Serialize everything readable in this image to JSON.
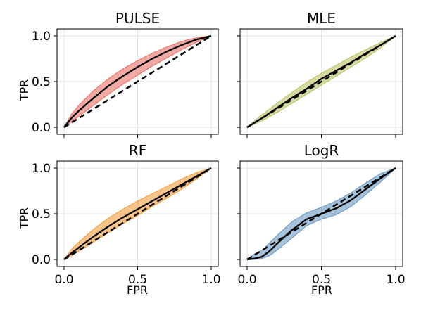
{
  "figure": {
    "ylabel": "TPR",
    "xlabel": "FPR"
  },
  "chart_data": [
    {
      "type": "line",
      "title": "PULSE",
      "xlabel": "",
      "ylabel": "TPR",
      "xlim": [
        0,
        1
      ],
      "ylim": [
        0,
        1
      ],
      "xticks": [
        "0.0",
        "0.5",
        "1.0"
      ],
      "yticks": [
        "0.0",
        "0.5",
        "1.0"
      ],
      "show_xtick_labels": false,
      "show_ytick_labels": true,
      "grid": true,
      "band_color": "#e8655a",
      "mean_color": "#000000",
      "series": [
        {
          "role": "mean-roc",
          "x": [
            0,
            0.05,
            0.1,
            0.2,
            0.3,
            0.4,
            0.5,
            0.6,
            0.7,
            0.8,
            0.9,
            1
          ],
          "y": [
            0,
            0.1,
            0.18,
            0.32,
            0.45,
            0.56,
            0.66,
            0.75,
            0.83,
            0.9,
            0.96,
            1
          ]
        },
        {
          "role": "band-upper",
          "x": [
            0,
            0.05,
            0.1,
            0.2,
            0.3,
            0.4,
            0.5,
            0.6,
            0.7,
            0.8,
            0.9,
            1
          ],
          "y": [
            0,
            0.14,
            0.24,
            0.4,
            0.53,
            0.64,
            0.73,
            0.81,
            0.88,
            0.94,
            0.98,
            1
          ]
        },
        {
          "role": "band-lower",
          "x": [
            0,
            0.05,
            0.1,
            0.2,
            0.3,
            0.4,
            0.5,
            0.6,
            0.7,
            0.8,
            0.9,
            1
          ],
          "y": [
            0,
            0.06,
            0.12,
            0.24,
            0.36,
            0.47,
            0.57,
            0.67,
            0.76,
            0.85,
            0.93,
            1
          ]
        },
        {
          "role": "chance",
          "x": [
            0,
            1
          ],
          "y": [
            0,
            1
          ]
        }
      ]
    },
    {
      "type": "line",
      "title": "MLE",
      "xlabel": "",
      "ylabel": "",
      "xlim": [
        0,
        1
      ],
      "ylim": [
        0,
        1
      ],
      "xticks": [
        "0.0",
        "0.5",
        "1.0"
      ],
      "yticks": [
        "0.0",
        "0.5",
        "1.0"
      ],
      "show_xtick_labels": false,
      "show_ytick_labels": false,
      "grid": true,
      "band_color": "#b5bd5a",
      "mean_color": "#000000",
      "series": [
        {
          "role": "mean-roc",
          "x": [
            0,
            0.1,
            0.2,
            0.3,
            0.4,
            0.5,
            0.6,
            0.7,
            0.8,
            0.9,
            1
          ],
          "y": [
            0,
            0.1,
            0.21,
            0.32,
            0.42,
            0.53,
            0.62,
            0.71,
            0.81,
            0.9,
            1
          ]
        },
        {
          "role": "band-upper",
          "x": [
            0,
            0.1,
            0.2,
            0.3,
            0.4,
            0.5,
            0.6,
            0.7,
            0.8,
            0.9,
            1
          ],
          "y": [
            0,
            0.14,
            0.26,
            0.38,
            0.49,
            0.59,
            0.68,
            0.77,
            0.85,
            0.93,
            1
          ]
        },
        {
          "role": "band-lower",
          "x": [
            0,
            0.1,
            0.2,
            0.3,
            0.4,
            0.5,
            0.6,
            0.7,
            0.8,
            0.9,
            1
          ],
          "y": [
            0,
            0.07,
            0.16,
            0.26,
            0.36,
            0.46,
            0.56,
            0.66,
            0.76,
            0.87,
            1
          ]
        },
        {
          "role": "chance",
          "x": [
            0,
            1
          ],
          "y": [
            0,
            1
          ]
        }
      ]
    },
    {
      "type": "line",
      "title": "RF",
      "xlabel": "FPR",
      "ylabel": "TPR",
      "xlim": [
        0,
        1
      ],
      "ylim": [
        0,
        1
      ],
      "xticks": [
        "0.0",
        "0.5",
        "1.0"
      ],
      "yticks": [
        "0.0",
        "0.5",
        "1.0"
      ],
      "show_xtick_labels": true,
      "show_ytick_labels": true,
      "grid": true,
      "band_color": "#f0952e",
      "mean_color": "#000000",
      "series": [
        {
          "role": "mean-roc",
          "x": [
            0,
            0.05,
            0.1,
            0.2,
            0.3,
            0.4,
            0.5,
            0.6,
            0.7,
            0.8,
            0.9,
            1
          ],
          "y": [
            0,
            0.07,
            0.13,
            0.25,
            0.36,
            0.46,
            0.55,
            0.64,
            0.73,
            0.82,
            0.91,
            1
          ]
        },
        {
          "role": "band-upper",
          "x": [
            0,
            0.05,
            0.1,
            0.2,
            0.3,
            0.4,
            0.5,
            0.6,
            0.7,
            0.8,
            0.9,
            1
          ],
          "y": [
            0,
            0.11,
            0.19,
            0.33,
            0.45,
            0.55,
            0.64,
            0.72,
            0.8,
            0.88,
            0.95,
            1
          ]
        },
        {
          "role": "band-lower",
          "x": [
            0,
            0.05,
            0.1,
            0.2,
            0.3,
            0.4,
            0.5,
            0.6,
            0.7,
            0.8,
            0.9,
            1
          ],
          "y": [
            0,
            0.04,
            0.09,
            0.19,
            0.29,
            0.39,
            0.48,
            0.58,
            0.67,
            0.77,
            0.88,
            1
          ]
        },
        {
          "role": "chance",
          "x": [
            0,
            1
          ],
          "y": [
            0,
            1
          ]
        }
      ]
    },
    {
      "type": "line",
      "title": "LogR",
      "xlabel": "FPR",
      "ylabel": "",
      "xlim": [
        0,
        1
      ],
      "ylim": [
        0,
        1
      ],
      "xticks": [
        "0.0",
        "0.5",
        "1.0"
      ],
      "yticks": [
        "0.0",
        "0.5",
        "1.0"
      ],
      "show_xtick_labels": true,
      "show_ytick_labels": false,
      "grid": true,
      "band_color": "#5f8fbd",
      "mean_color": "#000000",
      "series": [
        {
          "role": "mean-roc",
          "x": [
            0,
            0.05,
            0.1,
            0.15,
            0.2,
            0.3,
            0.4,
            0.5,
            0.6,
            0.7,
            0.8,
            0.9,
            1
          ],
          "y": [
            0,
            0.01,
            0.03,
            0.09,
            0.17,
            0.32,
            0.44,
            0.5,
            0.56,
            0.65,
            0.77,
            0.89,
            1
          ]
        },
        {
          "role": "band-upper",
          "x": [
            0,
            0.05,
            0.1,
            0.15,
            0.2,
            0.3,
            0.4,
            0.5,
            0.6,
            0.7,
            0.8,
            0.9,
            1
          ],
          "y": [
            0,
            0.06,
            0.1,
            0.18,
            0.26,
            0.41,
            0.51,
            0.57,
            0.64,
            0.73,
            0.84,
            0.94,
            1
          ]
        },
        {
          "role": "band-lower",
          "x": [
            0,
            0.05,
            0.1,
            0.15,
            0.2,
            0.3,
            0.4,
            0.5,
            0.6,
            0.7,
            0.8,
            0.9,
            1
          ],
          "y": [
            0,
            0,
            0.01,
            0.04,
            0.1,
            0.23,
            0.37,
            0.44,
            0.49,
            0.58,
            0.71,
            0.85,
            1
          ]
        },
        {
          "role": "chance",
          "x": [
            0,
            1
          ],
          "y": [
            0,
            1
          ]
        }
      ]
    }
  ]
}
